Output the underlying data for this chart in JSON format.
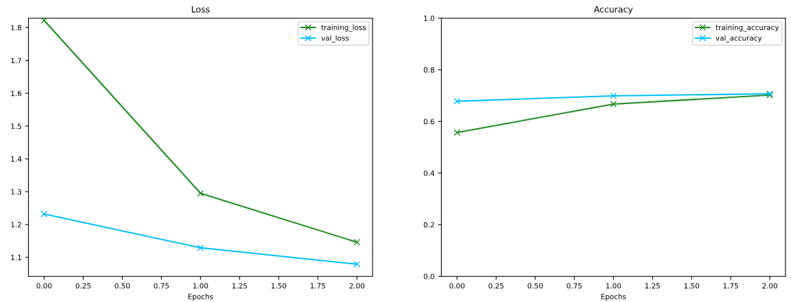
{
  "chart_data": [
    {
      "type": "line",
      "title": "Loss",
      "xlabel": "Epochs",
      "x": [
        0,
        1,
        2
      ],
      "marker": "cross",
      "legend": "top right",
      "grid": false,
      "xlim": [
        -0.1,
        2.1
      ],
      "xticks": [
        {
          "value": 0,
          "label": "0.00"
        },
        {
          "value": 0.25,
          "label": "0.25"
        },
        {
          "value": 0.5,
          "label": "0.50"
        },
        {
          "value": 0.75,
          "label": "0.75"
        },
        {
          "value": 1,
          "label": "1.00"
        },
        {
          "value": 1.25,
          "label": "1.25"
        },
        {
          "value": 1.5,
          "label": "1.50"
        },
        {
          "value": 1.75,
          "label": "1.75"
        },
        {
          "value": 2,
          "label": "2.00"
        }
      ],
      "ylim": [
        1.042,
        1.829
      ],
      "yticks": [
        1.1,
        1.2,
        1.3,
        1.4,
        1.5,
        1.6,
        1.7,
        1.8
      ],
      "series": [
        {
          "name": "training_loss",
          "color": "#228b22",
          "values": [
            1.822,
            1.295,
            1.146
          ]
        },
        {
          "name": "val_loss",
          "color": "#00bfff",
          "values": [
            1.232,
            1.129,
            1.079
          ]
        }
      ]
    },
    {
      "type": "line",
      "title": "Accuracy",
      "xlabel": "Epochs",
      "x": [
        0,
        1,
        2
      ],
      "marker": "cross",
      "legend": "top right",
      "grid": false,
      "xlim": [
        -0.1,
        2.1
      ],
      "xticks": [
        {
          "value": 0,
          "label": "0.00"
        },
        {
          "value": 0.25,
          "label": "0.25"
        },
        {
          "value": 0.5,
          "label": "0.50"
        },
        {
          "value": 0.75,
          "label": "0.75"
        },
        {
          "value": 1,
          "label": "1.00"
        },
        {
          "value": 1.25,
          "label": "1.25"
        },
        {
          "value": 1.5,
          "label": "1.50"
        },
        {
          "value": 1.75,
          "label": "1.75"
        },
        {
          "value": 2,
          "label": "2.00"
        }
      ],
      "ylim": [
        0,
        1
      ],
      "yticks": [
        {
          "value": 0,
          "label": "0.0"
        },
        {
          "value": 0.2,
          "label": "0.2"
        },
        {
          "value": 0.4,
          "label": "0.4"
        },
        {
          "value": 0.6,
          "label": "0.6"
        },
        {
          "value": 0.8,
          "label": "0.8"
        },
        {
          "value": 1,
          "label": "1.0"
        }
      ],
      "series": [
        {
          "name": "training_accuracy",
          "color": "#228b22",
          "values": [
            0.557,
            0.667,
            0.702
          ]
        },
        {
          "name": "val_accuracy",
          "color": "#00bfff",
          "values": [
            0.678,
            0.699,
            0.707
          ]
        }
      ]
    }
  ]
}
